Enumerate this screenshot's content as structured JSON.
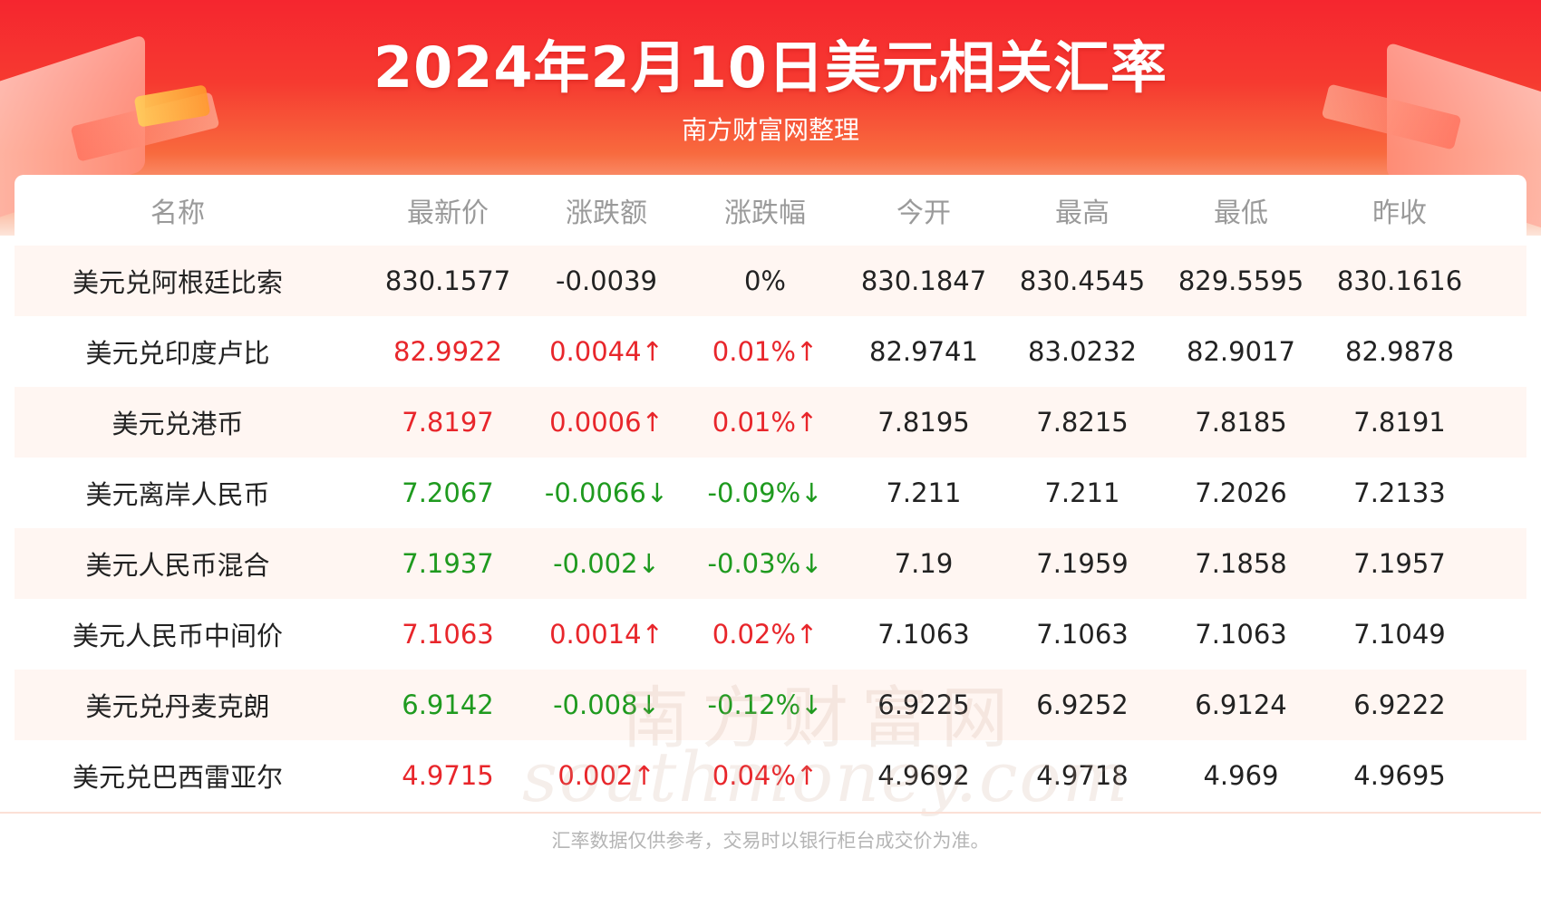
{
  "header": {
    "title": "2024年2月10日美元相关汇率",
    "subtitle": "南方财富网整理"
  },
  "table": {
    "columns": [
      "名称",
      "最新价",
      "涨跌额",
      "涨跌幅",
      "今开",
      "最高",
      "最低",
      "昨收"
    ],
    "rows": [
      {
        "name": "美元兑阿根廷比索",
        "latest": "830.1577",
        "change": "-0.0039",
        "pct": "0%",
        "open": "830.1847",
        "high": "830.4545",
        "low": "829.5595",
        "prev_close": "830.1616",
        "trend": "flat"
      },
      {
        "name": "美元兑印度卢比",
        "latest": "82.9922",
        "change": "0.0044↑",
        "pct": "0.01%↑",
        "open": "82.9741",
        "high": "83.0232",
        "low": "82.9017",
        "prev_close": "82.9878",
        "trend": "up"
      },
      {
        "name": "美元兑港币",
        "latest": "7.8197",
        "change": "0.0006↑",
        "pct": "0.01%↑",
        "open": "7.8195",
        "high": "7.8215",
        "low": "7.8185",
        "prev_close": "7.8191",
        "trend": "up"
      },
      {
        "name": "美元离岸人民币",
        "latest": "7.2067",
        "change": "-0.0066↓",
        "pct": "-0.09%↓",
        "open": "7.211",
        "high": "7.211",
        "low": "7.2026",
        "prev_close": "7.2133",
        "trend": "down"
      },
      {
        "name": "美元人民币混合",
        "latest": "7.1937",
        "change": "-0.002↓",
        "pct": "-0.03%↓",
        "open": "7.19",
        "high": "7.1959",
        "low": "7.1858",
        "prev_close": "7.1957",
        "trend": "down"
      },
      {
        "name": "美元人民币中间价",
        "latest": "7.1063",
        "change": "0.0014↑",
        "pct": "0.02%↑",
        "open": "7.1063",
        "high": "7.1063",
        "low": "7.1063",
        "prev_close": "7.1049",
        "trend": "up"
      },
      {
        "name": "美元兑丹麦克朗",
        "latest": "6.9142",
        "change": "-0.008↓",
        "pct": "-0.12%↓",
        "open": "6.9225",
        "high": "6.9252",
        "low": "6.9124",
        "prev_close": "6.9222",
        "trend": "down"
      },
      {
        "name": "美元兑巴西雷亚尔",
        "latest": "4.9715",
        "change": "0.002↑",
        "pct": "0.04%↑",
        "open": "4.9692",
        "high": "4.9718",
        "low": "4.969",
        "prev_close": "4.9695",
        "trend": "up"
      }
    ]
  },
  "watermark": {
    "cn": "南方财富网",
    "en": "southmoney.com"
  },
  "footer": {
    "note": "汇率数据仅供参考，交易时以银行柜台成交价为准。"
  },
  "colors": {
    "up": "#e8262b",
    "down": "#1f9a1f",
    "header_red": "#f5262f"
  }
}
